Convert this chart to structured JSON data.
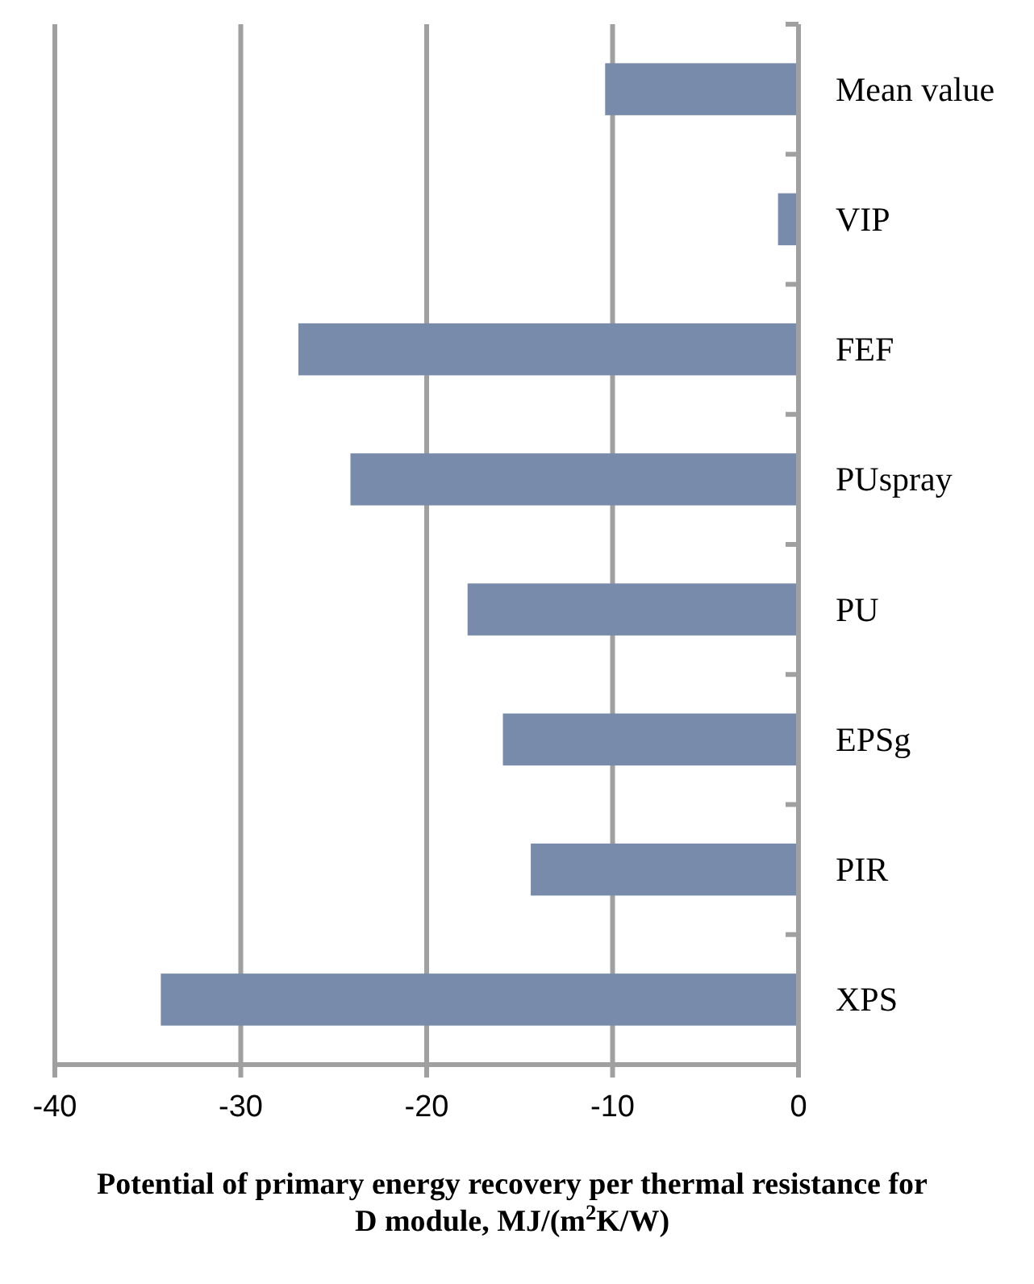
{
  "chart_data": {
    "type": "bar",
    "orientation": "horizontal",
    "xlabel": "Potential of primary energy recovery per thermal resistance for D module, MJ/(m$^{2}$K/W)",
    "categories": [
      "Mean value",
      "VIP",
      "FEF",
      "PUspray",
      "PU",
      "EPSg",
      "PIR",
      "XPS"
    ],
    "values": [
      -10.4,
      -1.1,
      -26.9,
      -24.1,
      -17.8,
      -15.9,
      -14.4,
      -34.3
    ],
    "color": "#788bab",
    "xlim": [
      -40,
      0
    ],
    "xticks": [
      -40,
      -30,
      -20,
      -10,
      0
    ],
    "grid": "x"
  }
}
